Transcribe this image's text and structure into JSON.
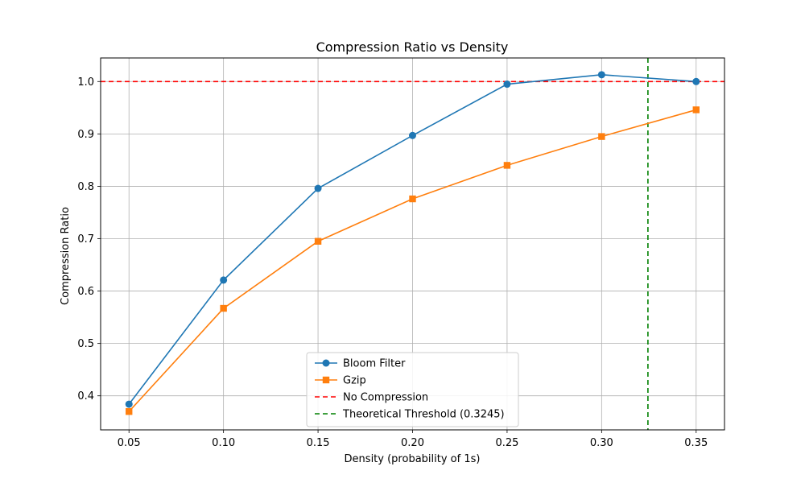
{
  "chart_data": {
    "type": "line",
    "title": "Compression Ratio vs Density",
    "xlabel": "Density (probability of 1s)",
    "ylabel": "Compression Ratio",
    "xlim": [
      0.035,
      0.365
    ],
    "ylim": [
      0.335,
      1.045
    ],
    "xticks": [
      0.05,
      0.1,
      0.15,
      0.2,
      0.25,
      0.3,
      0.35
    ],
    "xtick_labels": [
      "0.05",
      "0.10",
      "0.15",
      "0.20",
      "0.25",
      "0.30",
      "0.35"
    ],
    "yticks": [
      0.4,
      0.5,
      0.6,
      0.7,
      0.8,
      0.9,
      1.0
    ],
    "ytick_labels": [
      "0.4",
      "0.5",
      "0.6",
      "0.7",
      "0.8",
      "0.9",
      "1.0"
    ],
    "grid": true,
    "legend_position": "lower-center",
    "series": [
      {
        "name": "Bloom Filter",
        "color": "#1f77b4",
        "marker": "circle",
        "x": [
          0.05,
          0.1,
          0.15,
          0.2,
          0.25,
          0.3,
          0.35
        ],
        "y": [
          0.384,
          0.621,
          0.796,
          0.897,
          0.995,
          1.013,
          1.0
        ]
      },
      {
        "name": "Gzip",
        "color": "#ff7f0e",
        "marker": "square",
        "x": [
          0.05,
          0.1,
          0.15,
          0.2,
          0.25,
          0.3,
          0.35
        ],
        "y": [
          0.37,
          0.567,
          0.695,
          0.776,
          0.84,
          0.895,
          0.946
        ]
      }
    ],
    "reference_lines": [
      {
        "name": "No Compression",
        "orientation": "horizontal",
        "value": 1.0,
        "color": "#ff0000",
        "style": "dashed"
      },
      {
        "name": "Theoretical Threshold (0.3245)",
        "orientation": "vertical",
        "value": 0.3245,
        "color": "#008000",
        "style": "dashed"
      }
    ]
  }
}
